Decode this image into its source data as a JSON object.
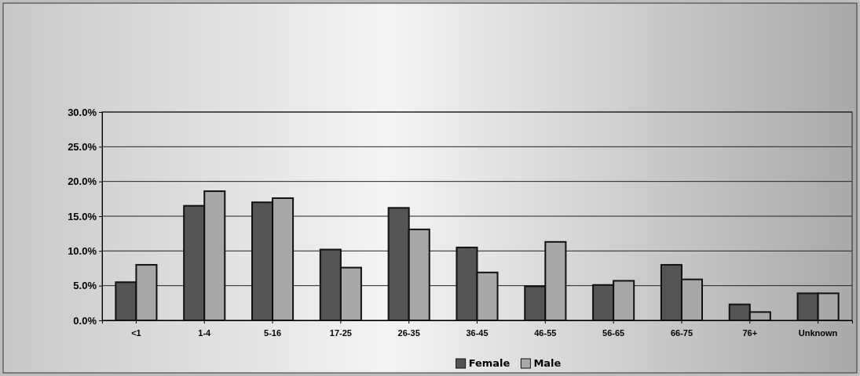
{
  "chart_data": {
    "type": "bar",
    "categories": [
      "<1",
      "1-4",
      "5-16",
      "17-25",
      "26-35",
      "36-45",
      "46-55",
      "56-65",
      "66-75",
      "76+",
      "Unknown"
    ],
    "series": [
      {
        "name": "Female",
        "color": "#555555",
        "values": [
          5.5,
          16.5,
          17.0,
          10.2,
          16.2,
          10.5,
          4.9,
          5.1,
          8.0,
          2.3,
          3.9
        ]
      },
      {
        "name": "Male",
        "color": "#a8a8a8",
        "values": [
          8.0,
          18.6,
          17.6,
          7.6,
          13.1,
          6.9,
          11.3,
          5.7,
          5.9,
          1.2,
          3.9
        ]
      }
    ],
    "ylim": [
      0,
      30
    ],
    "yticks": [
      {
        "value": 0,
        "label": "0.0%"
      },
      {
        "value": 5,
        "label": "5.0%"
      },
      {
        "value": 10,
        "label": "10.0%"
      },
      {
        "value": 15,
        "label": "15.0%"
      },
      {
        "value": 20,
        "label": "20.0%"
      },
      {
        "value": 25,
        "label": "25.0%"
      },
      {
        "value": 30,
        "label": "30.0%"
      }
    ],
    "grid": "y",
    "legend": "bottom"
  }
}
